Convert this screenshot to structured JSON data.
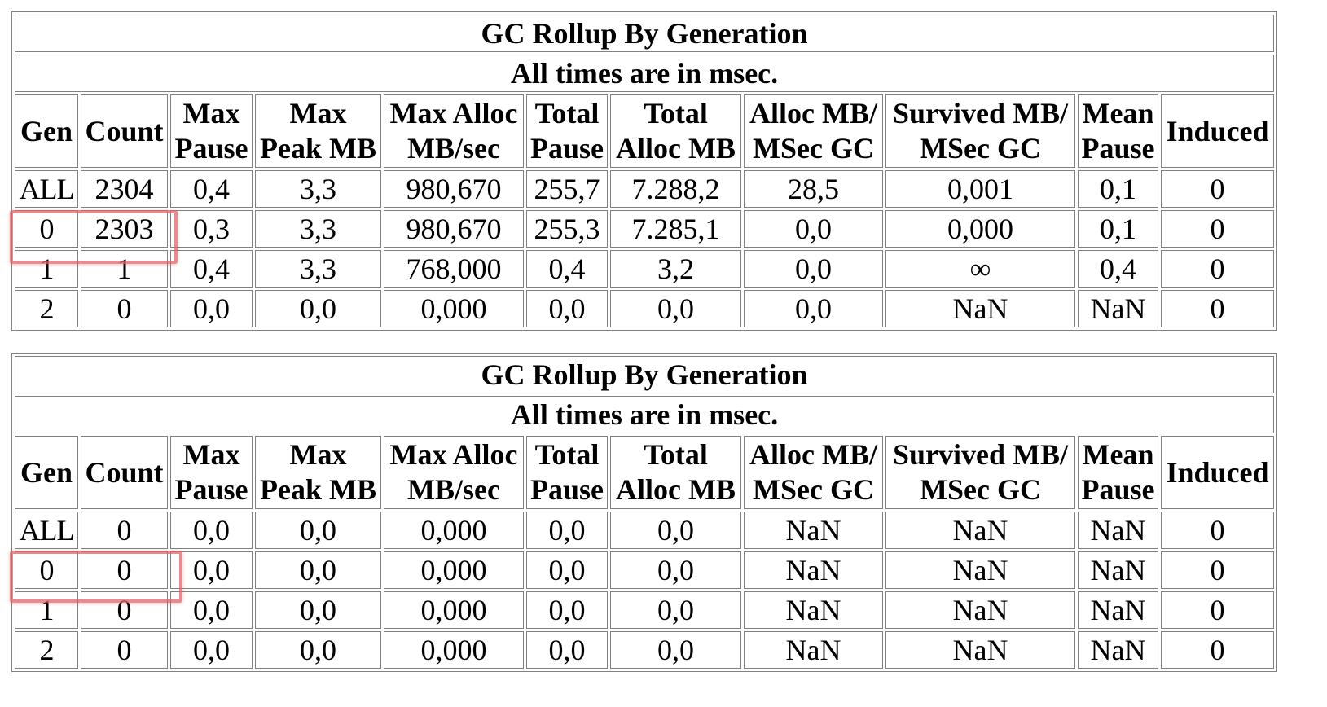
{
  "tables": [
    {
      "title": "GC Rollup By Generation",
      "subtitle": "All times are in msec.",
      "headers": [
        [
          "Gen"
        ],
        [
          "Count"
        ],
        [
          "Max",
          "Pause"
        ],
        [
          "Max",
          "Peak MB"
        ],
        [
          "Max Alloc",
          "MB/sec"
        ],
        [
          "Total",
          "Pause"
        ],
        [
          "Total",
          "Alloc MB"
        ],
        [
          "Alloc MB/",
          "MSec GC"
        ],
        [
          "Survived MB/",
          "MSec GC"
        ],
        [
          "Mean",
          "Pause"
        ],
        [
          "Induced"
        ]
      ],
      "rows": [
        [
          "ALL",
          "2304",
          "0,4",
          "3,3",
          "980,670",
          "255,7",
          "7.288,2",
          "28,5",
          "0,001",
          "0,1",
          "0"
        ],
        [
          "0",
          "2303",
          "0,3",
          "3,3",
          "980,670",
          "255,3",
          "7.285,1",
          "0,0",
          "0,000",
          "0,1",
          "0"
        ],
        [
          "1",
          "1",
          "0,4",
          "3,3",
          "768,000",
          "0,4",
          "3,2",
          "0,0",
          "∞",
          "0,4",
          "0"
        ],
        [
          "2",
          "0",
          "0,0",
          "0,0",
          "0,000",
          "0,0",
          "0,0",
          "0,0",
          "NaN",
          "NaN",
          "0"
        ]
      ],
      "highlight_color": "#dc5f64"
    },
    {
      "title": "GC Rollup By Generation",
      "subtitle": "All times are in msec.",
      "headers": [
        [
          "Gen"
        ],
        [
          "Count"
        ],
        [
          "Max",
          "Pause"
        ],
        [
          "Max",
          "Peak MB"
        ],
        [
          "Max Alloc",
          "MB/sec"
        ],
        [
          "Total",
          "Pause"
        ],
        [
          "Total",
          "Alloc MB"
        ],
        [
          "Alloc MB/",
          "MSec GC"
        ],
        [
          "Survived MB/",
          "MSec GC"
        ],
        [
          "Mean",
          "Pause"
        ],
        [
          "Induced"
        ]
      ],
      "rows": [
        [
          "ALL",
          "0",
          "0,0",
          "0,0",
          "0,000",
          "0,0",
          "0,0",
          "NaN",
          "NaN",
          "NaN",
          "0"
        ],
        [
          "0",
          "0",
          "0,0",
          "0,0",
          "0,000",
          "0,0",
          "0,0",
          "NaN",
          "NaN",
          "NaN",
          "0"
        ],
        [
          "1",
          "0",
          "0,0",
          "0,0",
          "0,000",
          "0,0",
          "0,0",
          "NaN",
          "NaN",
          "NaN",
          "0"
        ],
        [
          "2",
          "0",
          "0,0",
          "0,0",
          "0,000",
          "0,0",
          "0,0",
          "NaN",
          "NaN",
          "NaN",
          "0"
        ]
      ],
      "highlight_color": "#dc5f64"
    }
  ]
}
